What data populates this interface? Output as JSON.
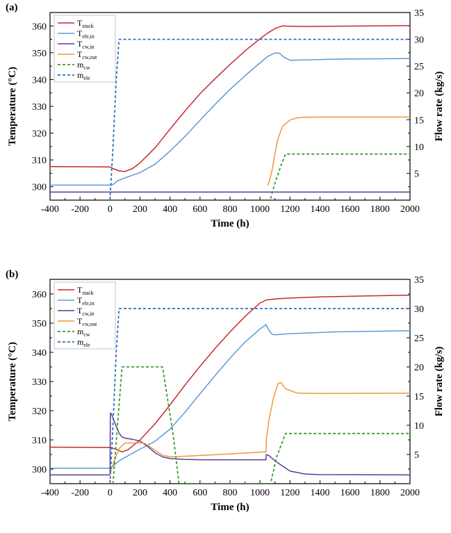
{
  "colors": {
    "T_stack": "#c8282d",
    "T_ele_in": "#5b9bd5",
    "T_cw_in": "#5b3a96",
    "T_cw_out": "#f0963c",
    "m_cw": "#3a9a2e",
    "m_ele": "#2e6fbd"
  },
  "chart_data": [
    {
      "panel": "(a)",
      "type": "line",
      "xlabel": "Time (h)",
      "ylabel": "Temperature (°C)",
      "y2label": "Flow rate (kg/s)",
      "xlim": [
        -400,
        2000
      ],
      "ylim": [
        295,
        365
      ],
      "y2lim": [
        0,
        35
      ],
      "xticks": [
        "-400",
        "-200",
        "0",
        "200",
        "400",
        "600",
        "800",
        "1000",
        "1200",
        "1400",
        "1600",
        "1800",
        "2000"
      ],
      "yticks": [
        "300",
        "310",
        "320",
        "330",
        "340",
        "350",
        "360"
      ],
      "y2ticks": [
        "5",
        "10",
        "15",
        "20",
        "25",
        "30",
        "35"
      ],
      "legend": [
        {
          "base": "T",
          "sub": "stack",
          "key": "T_stack",
          "dash": false
        },
        {
          "base": "T",
          "sub": "ele,in",
          "key": "T_ele_in",
          "dash": false
        },
        {
          "base": "T",
          "sub": "cw,in",
          "key": "T_cw_in",
          "dash": false
        },
        {
          "base": "T",
          "sub": "cw,out",
          "key": "T_cw_out",
          "dash": false
        },
        {
          "base": "m",
          "sub": "cw",
          "key": "m_cw",
          "dash": true
        },
        {
          "base": "m",
          "sub": "ele",
          "key": "m_ele",
          "dash": true
        }
      ],
      "series": [
        {
          "key": "T_stack",
          "axis": "left",
          "dash": false,
          "x": [
            -400,
            0,
            20,
            60,
            100,
            150,
            200,
            300,
            400,
            500,
            600,
            700,
            800,
            900,
            1000,
            1050,
            1100,
            1150,
            1200,
            1300,
            1500,
            2000
          ],
          "y": [
            307.5,
            307.4,
            306.8,
            305.9,
            305.7,
            306.8,
            308.9,
            314.5,
            321.5,
            328.3,
            334.7,
            340.3,
            345.6,
            350.7,
            355.2,
            357.3,
            359.0,
            360.0,
            359.9,
            359.8,
            359.9,
            360.1
          ]
        },
        {
          "key": "T_ele_in",
          "axis": "left",
          "dash": false,
          "x": [
            -400,
            0,
            20,
            50,
            100,
            200,
            300,
            400,
            500,
            600,
            700,
            800,
            900,
            1000,
            1050,
            1100,
            1130,
            1160,
            1200,
            1300,
            1500,
            2000
          ],
          "y": [
            300.6,
            300.6,
            300.8,
            302.2,
            303.3,
            305.3,
            308.4,
            313.3,
            318.8,
            324.8,
            330.7,
            336.3,
            341.4,
            346.2,
            348.6,
            349.9,
            349.8,
            348.3,
            347.2,
            347.3,
            347.6,
            347.8
          ]
        },
        {
          "key": "T_cw_in",
          "axis": "left",
          "dash": false,
          "x": [
            -400,
            2000
          ],
          "y": [
            298.0,
            298.0
          ]
        },
        {
          "key": "T_cw_out",
          "axis": "left",
          "dash": false,
          "x": [
            1050,
            1060,
            1080,
            1100,
            1120,
            1150,
            1200,
            1250,
            1300,
            1400,
            1600,
            2000
          ],
          "y": [
            300.5,
            301.5,
            306.0,
            312.5,
            318.0,
            322.5,
            324.9,
            325.7,
            325.9,
            326.0,
            326.0,
            326.0
          ]
        },
        {
          "key": "m_cw",
          "axis": "right",
          "dash": true,
          "x": [
            1070,
            1100,
            1140,
            1170,
            2000
          ],
          "y": [
            0.3,
            3.2,
            6.5,
            8.6,
            8.6
          ]
        },
        {
          "key": "m_ele",
          "axis": "right",
          "dash": true,
          "x": [
            0,
            20,
            40,
            60,
            2000
          ],
          "y": [
            0.0,
            10.0,
            22.0,
            30.0,
            30.0
          ]
        }
      ]
    },
    {
      "panel": "(b)",
      "type": "line",
      "xlabel": "Time (h)",
      "ylabel": "Temperature (°C)",
      "y2label": "Flow rate (kg/s)",
      "xlim": [
        -400,
        2000
      ],
      "ylim": [
        295,
        365
      ],
      "y2lim": [
        0,
        35
      ],
      "xticks": [
        "-400",
        "-200",
        "0",
        "200",
        "400",
        "600",
        "800",
        "1000",
        "1200",
        "1400",
        "1600",
        "1800",
        "2000"
      ],
      "yticks": [
        "300",
        "310",
        "320",
        "330",
        "340",
        "350",
        "360"
      ],
      "y2ticks": [
        "5",
        "10",
        "15",
        "20",
        "25",
        "30",
        "35"
      ],
      "legend": [
        {
          "base": "T",
          "sub": "stack",
          "key": "T_stack",
          "dash": false
        },
        {
          "base": "T",
          "sub": "ele,in",
          "key": "T_ele_in",
          "dash": false
        },
        {
          "base": "T",
          "sub": "cw,in",
          "key": "T_cw_in",
          "dash": false
        },
        {
          "base": "T",
          "sub": "cw,out",
          "key": "T_cw_out",
          "dash": false
        },
        {
          "base": "m",
          "sub": "cw",
          "key": "m_cw",
          "dash": true
        },
        {
          "base": "m",
          "sub": "ele",
          "key": "m_ele",
          "dash": true
        }
      ],
      "series": [
        {
          "key": "T_stack",
          "axis": "left",
          "dash": false,
          "x": [
            -400,
            0,
            40,
            80,
            120,
            200,
            300,
            400,
            500,
            600,
            700,
            800,
            900,
            1000,
            1040,
            1070,
            1100,
            1200,
            1400,
            1700,
            2000
          ],
          "y": [
            307.5,
            307.4,
            306.8,
            305.9,
            306.6,
            310.0,
            315.5,
            322.0,
            328.8,
            335.2,
            341.3,
            347.0,
            352.3,
            356.9,
            357.9,
            358.1,
            358.3,
            358.6,
            359.0,
            359.3,
            359.6
          ]
        },
        {
          "key": "T_ele_in",
          "axis": "left",
          "dash": false,
          "x": [
            -400,
            0,
            20,
            60,
            100,
            200,
            300,
            400,
            500,
            600,
            700,
            800,
            900,
            1000,
            1040,
            1060,
            1080,
            1100,
            1200,
            1500,
            2000
          ],
          "y": [
            300.3,
            300.3,
            301.0,
            302.8,
            304.0,
            306.8,
            309.5,
            313.7,
            319.5,
            325.8,
            332.0,
            338.0,
            343.5,
            348.0,
            349.5,
            347.5,
            346.2,
            346.0,
            346.4,
            347.0,
            347.4
          ]
        },
        {
          "key": "T_cw_in",
          "axis": "left",
          "dash": false,
          "x": [
            -400,
            0,
            2,
            10,
            20,
            40,
            60,
            80,
            100,
            150,
            200,
            250,
            300,
            350,
            400,
            500,
            600,
            800,
            1040,
            1042,
            1060,
            1100,
            1200,
            1300,
            1400,
            2000
          ],
          "y": [
            298.0,
            298.0,
            319.2,
            318.8,
            317.5,
            314.8,
            312.3,
            311.0,
            310.6,
            310.2,
            309.6,
            307.8,
            305.6,
            304.2,
            303.6,
            303.3,
            303.2,
            303.2,
            303.2,
            305.0,
            304.6,
            302.8,
            299.3,
            298.3,
            298.1,
            298.0
          ]
        },
        {
          "key": "T_cw_out",
          "axis": "left",
          "dash": false,
          "x": [
            0,
            10,
            30,
            60,
            100,
            200,
            230,
            300,
            350,
            400,
            500,
            700,
            1040,
            1042,
            1060,
            1090,
            1120,
            1140,
            1170,
            1250,
            1400,
            2000
          ],
          "y": [
            298.0,
            300.0,
            303.0,
            307.0,
            308.9,
            309.0,
            308.8,
            306.5,
            304.8,
            304.2,
            304.4,
            304.9,
            305.9,
            310.0,
            317.0,
            324.5,
            329.3,
            329.7,
            327.5,
            326.0,
            325.9,
            326.0
          ]
        },
        {
          "key": "m_cw",
          "axis": "right",
          "dash": true,
          "x": [
            20,
            80,
            350,
            420,
            460,
            1070,
            1110,
            1170,
            2000
          ],
          "y": [
            0.0,
            20.0,
            20.0,
            8.5,
            0.0,
            0.0,
            4.5,
            8.6,
            8.6
          ]
        },
        {
          "key": "m_ele",
          "axis": "right",
          "dash": true,
          "x": [
            0,
            20,
            40,
            60,
            2000
          ],
          "y": [
            0.0,
            10.0,
            22.0,
            30.0,
            30.0
          ]
        }
      ]
    }
  ]
}
